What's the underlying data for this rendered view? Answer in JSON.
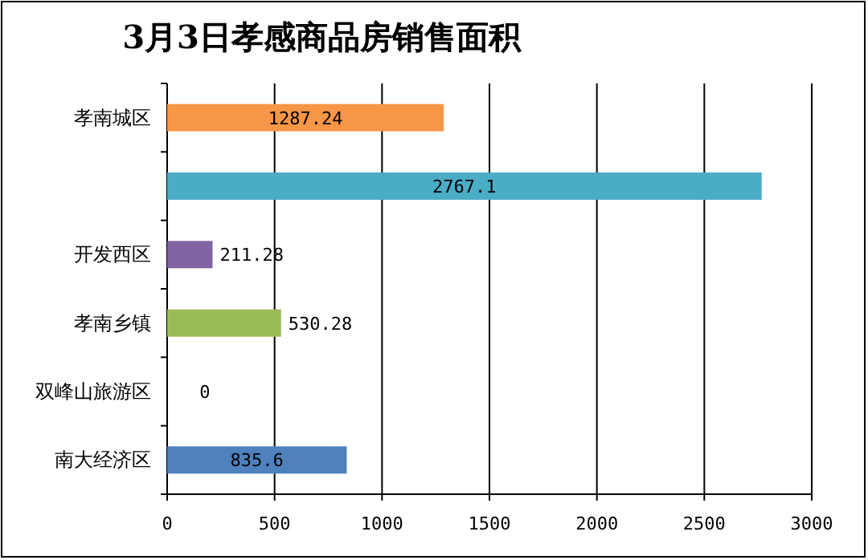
{
  "chart_data": {
    "type": "bar",
    "orientation": "horizontal",
    "title": "3月3日孝感商品房销售面积",
    "categories": [
      "孝南城区",
      null,
      "开发西区",
      "孝南乡镇",
      "双峰山旅游区",
      "南大经济区"
    ],
    "values": [
      1287.24,
      2767.1,
      211.28,
      530.28,
      0,
      835.6
    ],
    "colors": [
      "#f79646",
      "#4bacc6",
      "#8064a2",
      "#9bbb59",
      "#c0504d",
      "#4f81bd"
    ],
    "xlim": [
      0,
      3000
    ],
    "xticks": [
      0,
      500,
      1000,
      1500,
      2000,
      2500,
      3000
    ],
    "grid": "x",
    "data_labels": true
  }
}
